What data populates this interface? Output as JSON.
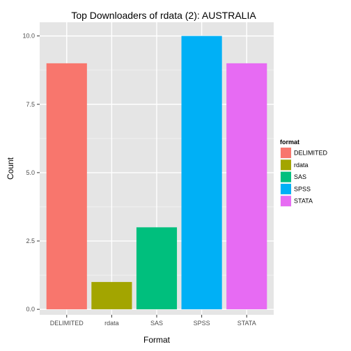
{
  "chart_data": {
    "type": "bar",
    "title": "Top Downloaders of rdata (2):  AUSTRALIA",
    "xlabel": "Format",
    "ylabel": "Count",
    "categories": [
      "DELIMITED",
      "rdata",
      "SAS",
      "SPSS",
      "STATA"
    ],
    "values": [
      9,
      1,
      3,
      10,
      9
    ],
    "colors": [
      "#F8766D",
      "#A3A500",
      "#00BF7D",
      "#00B0F6",
      "#E76BF3"
    ],
    "ylim": [
      -0.2,
      10.5
    ],
    "yticks": [
      0.0,
      2.5,
      5.0,
      7.5,
      10.0
    ],
    "ytick_labels": [
      "0.0",
      "2.5",
      "5.0",
      "7.5",
      "10.0"
    ],
    "grid": true,
    "legend": {
      "title": "format",
      "placement": "right",
      "entries": [
        "DELIMITED",
        "rdata",
        "SAS",
        "SPSS",
        "STATA"
      ]
    }
  }
}
